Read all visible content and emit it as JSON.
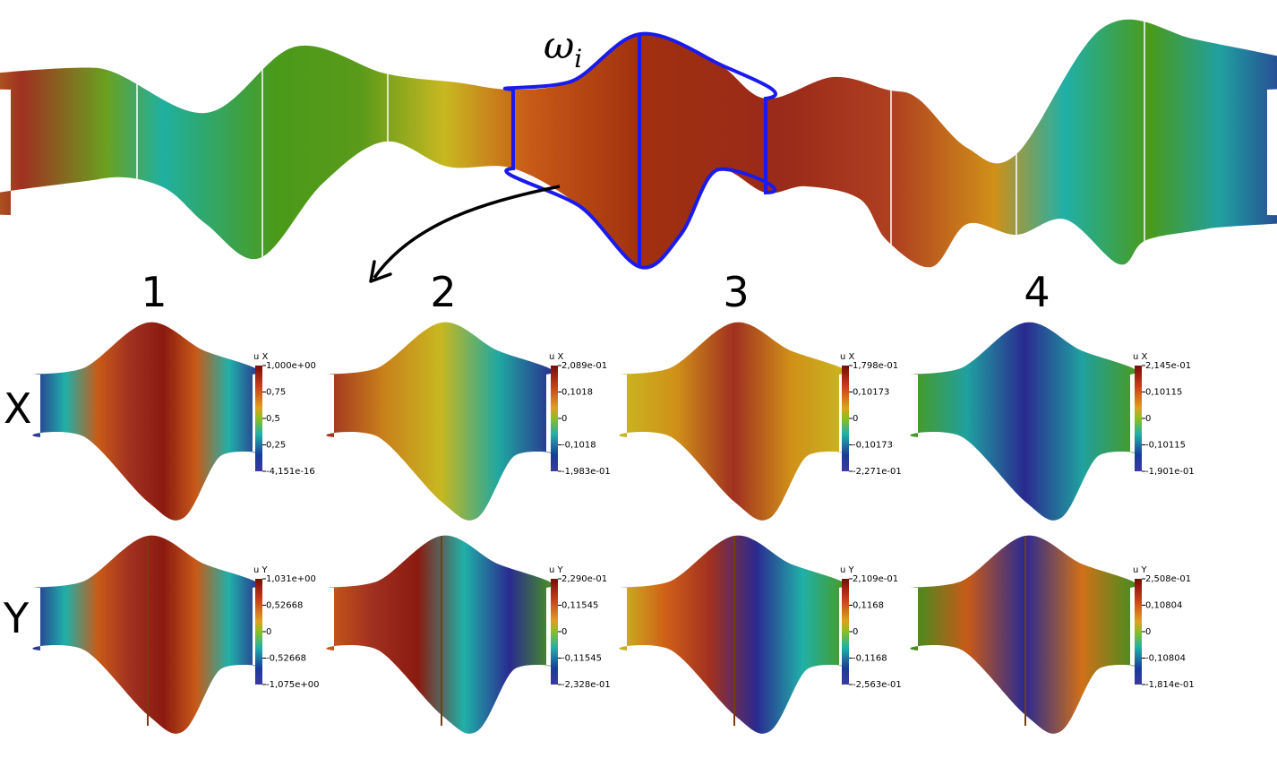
{
  "omega_label": {
    "symbol": "ω",
    "subscript": "i"
  },
  "columns": [
    "1",
    "2",
    "3",
    "4"
  ],
  "rows": [
    "X",
    "Y"
  ],
  "panels": [
    [
      {
        "title": "u X",
        "ticks": [
          "1,000e+00",
          "0,75",
          "0,5",
          "0,25",
          "-4,151e-16"
        ]
      },
      {
        "title": "u X",
        "ticks": [
          "2,089e-01",
          "0,1018",
          "0",
          "-0,1018",
          "-1,983e-01"
        ]
      },
      {
        "title": "u X",
        "ticks": [
          "1,798e-01",
          "0,10173",
          "0",
          "-0,10173",
          "-2,271e-01"
        ]
      },
      {
        "title": "u X",
        "ticks": [
          "2,145e-01",
          "0,10115",
          "0",
          "-0,10115",
          "-1,901e-01"
        ]
      }
    ],
    [
      {
        "title": "u Y",
        "ticks": [
          "1,031e+00",
          "0,52668",
          "0",
          "-0,52668",
          "-1,075e+00"
        ]
      },
      {
        "title": "u Y",
        "ticks": [
          "2,290e-01",
          "0,11545",
          "0",
          "-0,11545",
          "-2,328e-01"
        ]
      },
      {
        "title": "u Y",
        "ticks": [
          "2,109e-01",
          "0,1168",
          "0",
          "-0,1168",
          "-2,563e-01"
        ]
      },
      {
        "title": "u Y",
        "ticks": [
          "2,508e-01",
          "0,10804",
          "0",
          "-0,10804",
          "-1,814e-01"
        ]
      }
    ]
  ]
}
